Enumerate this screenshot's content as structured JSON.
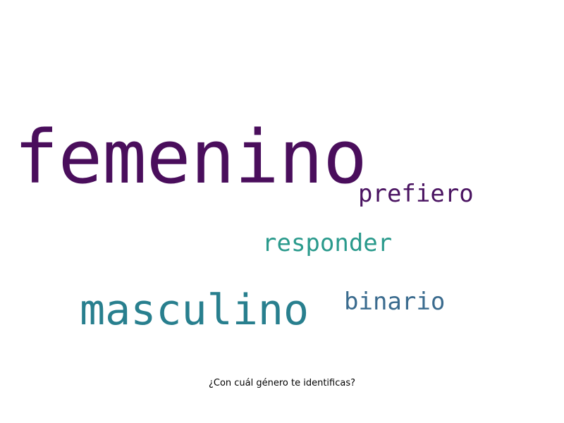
{
  "words": [
    {
      "text": "femenino",
      "color": "#4a0e5c"
    },
    {
      "text": "prefiero",
      "color": "#4a1361"
    },
    {
      "text": "responder",
      "color": "#2a9a8c"
    },
    {
      "text": "masculino",
      "color": "#287f8e"
    },
    {
      "text": "binario",
      "color": "#3a6b8e"
    }
  ],
  "caption": "¿Con cuál género te identificas?"
}
